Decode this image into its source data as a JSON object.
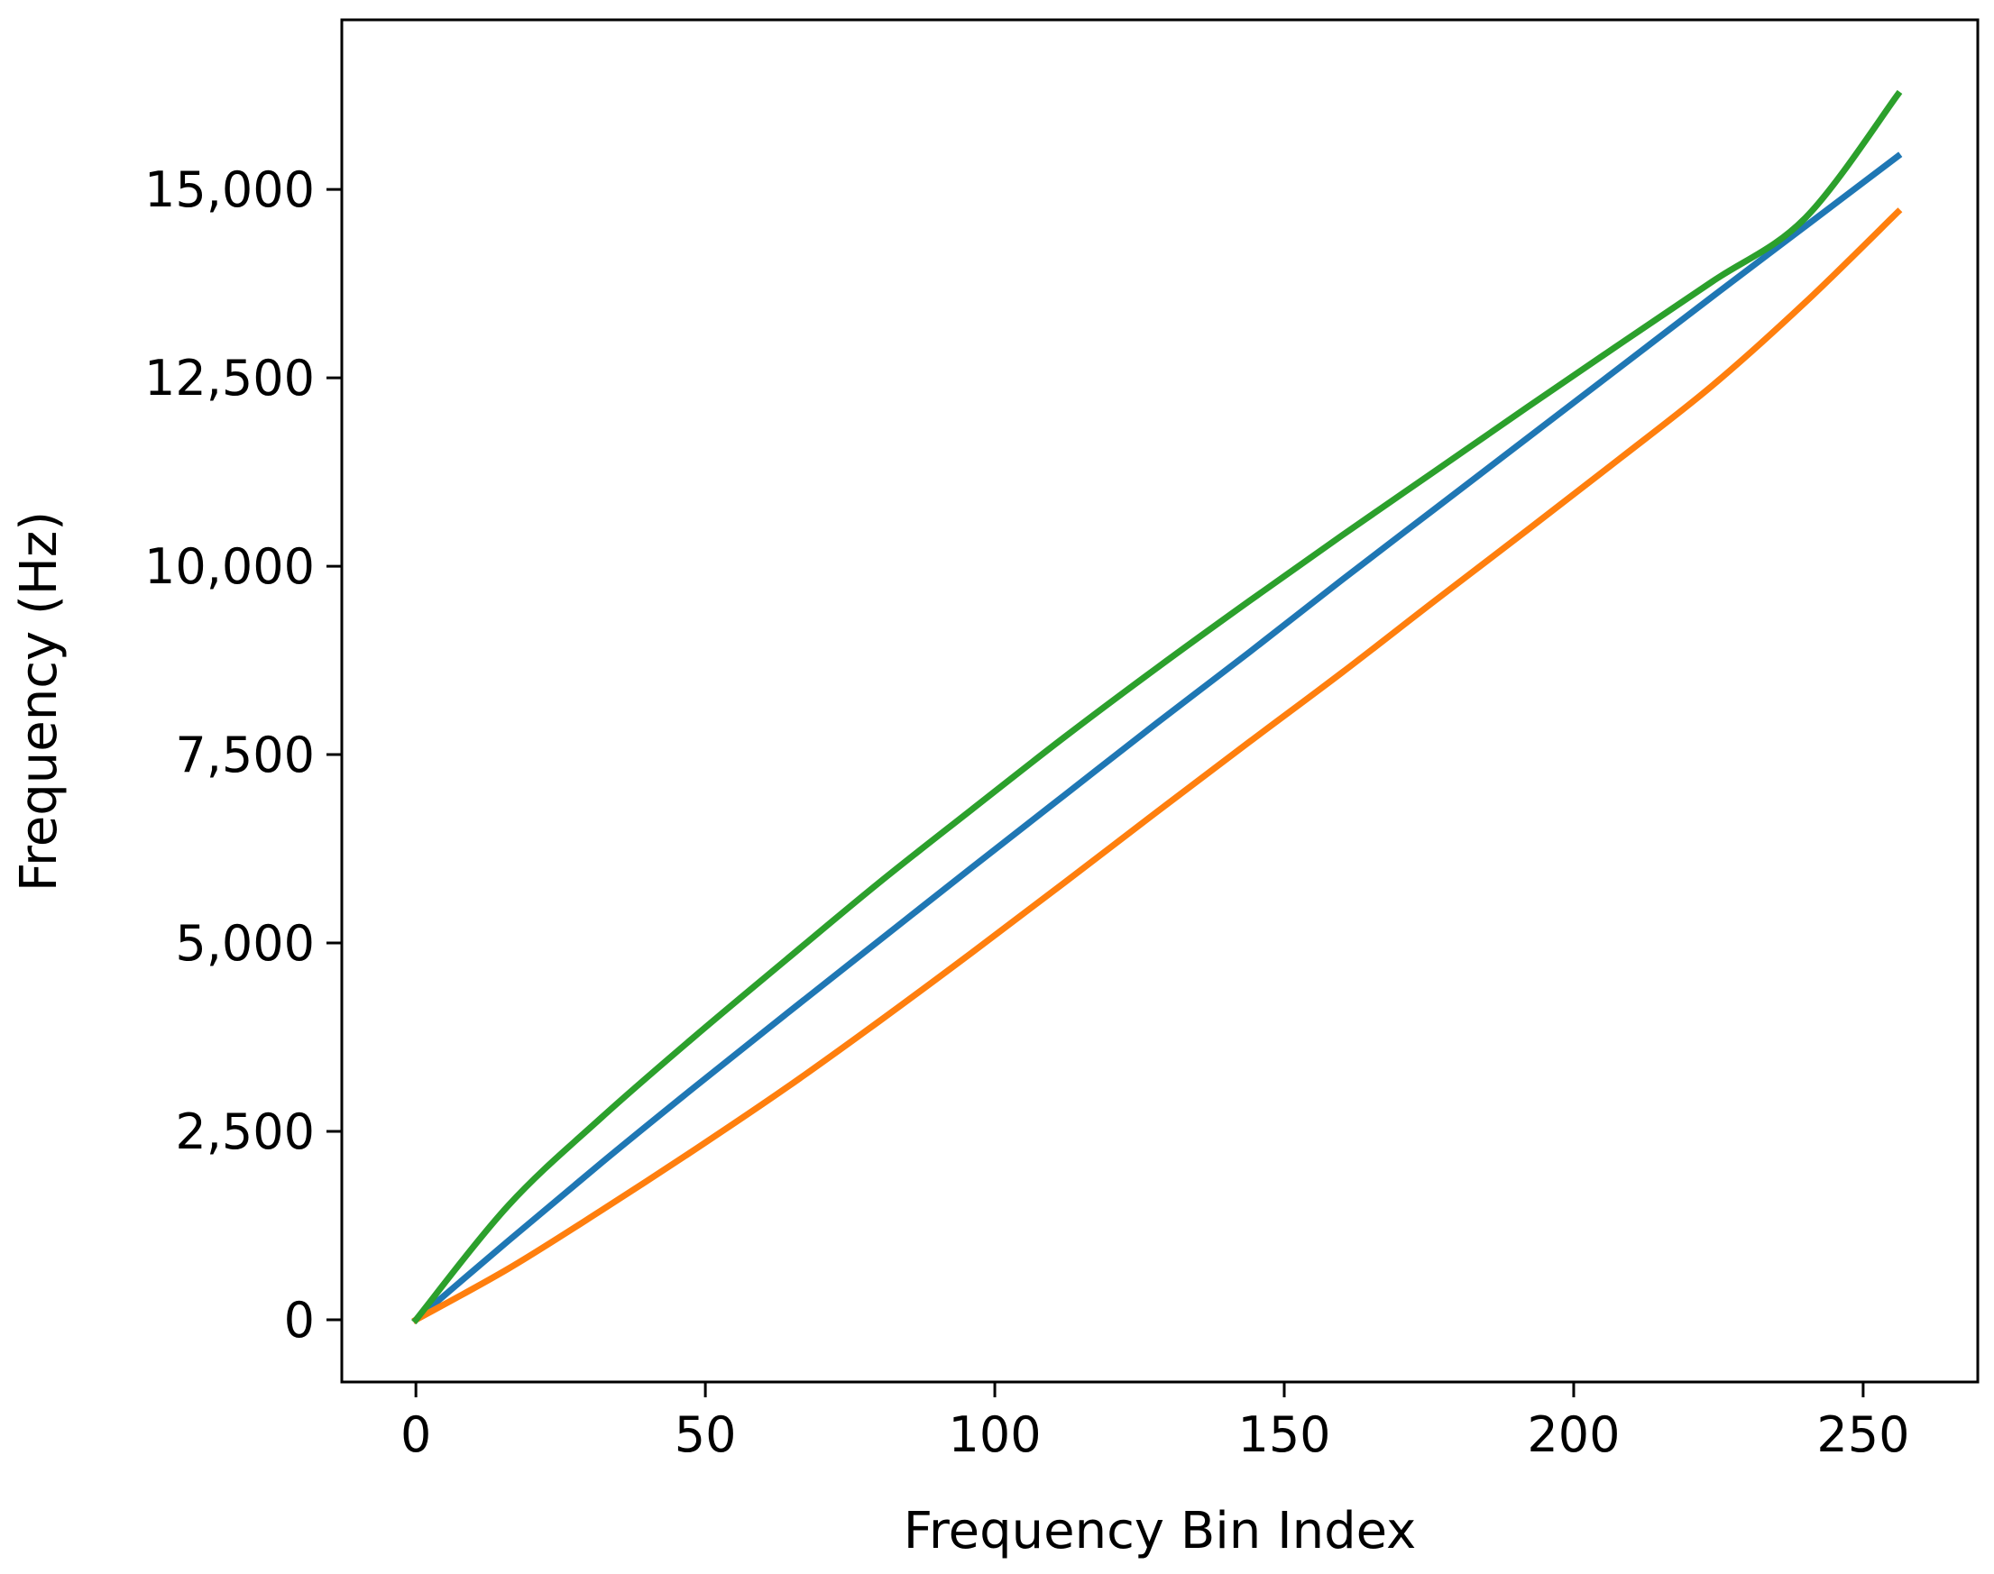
{
  "chart_data": {
    "type": "line",
    "title": "",
    "xlabel": "Frequency Bin Index",
    "ylabel": "Frequency (Hz)",
    "xlim": [
      -12.8,
      269.8
    ],
    "ylim": [
      -825,
      17250
    ],
    "grid": false,
    "x_ticks": [
      0,
      50,
      100,
      150,
      200,
      250
    ],
    "x_tick_labels": [
      "0",
      "50",
      "100",
      "150",
      "200",
      "250"
    ],
    "y_ticks": [
      0,
      2500,
      5000,
      7500,
      10000,
      12500,
      15000
    ],
    "y_tick_labels": [
      "0",
      "2,500",
      "5,000",
      "7,500",
      "10,000",
      "12,500",
      "15,000"
    ],
    "x": [
      0,
      16,
      32,
      48,
      64,
      80,
      96,
      112,
      128,
      144,
      160,
      176,
      192,
      208,
      224,
      240,
      256
    ],
    "series": [
      {
        "color": "#1f77b4",
        "values": [
          0,
          1050,
          2080,
          3080,
          4060,
          5030,
          6000,
          6960,
          7920,
          8860,
          9820,
          10760,
          11700,
          12640,
          13580,
          14510,
          15440
        ]
      },
      {
        "color": "#ff7f0e",
        "values": [
          0,
          680,
          1450,
          2250,
          3080,
          3960,
          4870,
          5800,
          6740,
          7670,
          8590,
          9540,
          10480,
          11430,
          12400,
          13500,
          14700
        ]
      },
      {
        "color": "#2ca02c",
        "values": [
          0,
          1520,
          2680,
          3750,
          4780,
          5800,
          6770,
          7730,
          8650,
          9540,
          10410,
          11260,
          12110,
          12950,
          13780,
          14620,
          16260
        ]
      }
    ]
  }
}
